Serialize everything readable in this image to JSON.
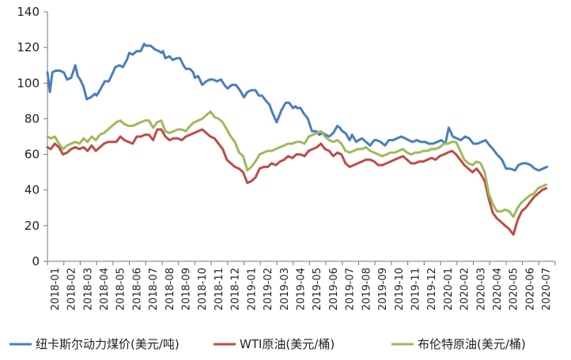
{
  "chart_data": {
    "type": "line",
    "title": "",
    "xlabel": "",
    "ylabel": "",
    "ylim": [
      0,
      140
    ],
    "yticks": [
      0,
      20,
      40,
      60,
      80,
      100,
      120,
      140
    ],
    "grid": false,
    "legend_position": "bottom",
    "x_ticks": [
      "2018-01",
      "2018-02",
      "2018-03",
      "2018-04",
      "2018-05",
      "2018-06",
      "2018-07",
      "2018-08",
      "2018-09",
      "2018-10",
      "2018-11",
      "2018-12",
      "2019-01",
      "2019-02",
      "2019-03",
      "2019-04",
      "2019-05",
      "2019-06",
      "2019-07",
      "2019-08",
      "2019-09",
      "2019-10",
      "2019-11",
      "2019-12",
      "2020-01",
      "2020-02",
      "2020-03",
      "2020-04",
      "2020-05",
      "2020-06",
      "2020-07"
    ],
    "x_range": [
      0,
      31
    ],
    "series": [
      {
        "name": "纽卡斯尔动力煤价(美元/吨)",
        "color": "#4A7EBB",
        "x": [
          0,
          0.15,
          0.3,
          0.5,
          0.75,
          1,
          1.2,
          1.45,
          1.7,
          1.85,
          2,
          2.2,
          2.4,
          2.65,
          2.9,
          3,
          3.2,
          3.5,
          3.75,
          4,
          4.15,
          4.4,
          4.6,
          4.85,
          5,
          5.2,
          5.45,
          5.7,
          5.9,
          6,
          6.3,
          6.55,
          6.8,
          6.95,
          7.05,
          7.2,
          7.45,
          7.65,
          7.9,
          8.1,
          8.3,
          8.45,
          8.7,
          8.9,
          9,
          9.2,
          9.45,
          9.7,
          9.9,
          10.1,
          10.35,
          10.6,
          10.8,
          11,
          11.25,
          11.5,
          11.75,
          12,
          12.2,
          12.45,
          12.7,
          12.9,
          13.1,
          13.35,
          13.55,
          13.75,
          14,
          14.3,
          14.55,
          14.75,
          15,
          15.15,
          15.25,
          15.45,
          15.65,
          15.9,
          16.15,
          16.4,
          16.6,
          16.8,
          17,
          17.2,
          17.45,
          17.7,
          17.85,
          18,
          18.2,
          18.45,
          18.6,
          18.85,
          19,
          19.2,
          19.45,
          19.7,
          19.95,
          20.1,
          20.35,
          20.6,
          20.85,
          21.1,
          21.35,
          21.6,
          21.85,
          22.05,
          22.3,
          22.55,
          22.8,
          23.05,
          23.3,
          23.55,
          23.8,
          24.05,
          24.3,
          24.5,
          24.75,
          25,
          25.25,
          25.5,
          25.75,
          26,
          26.25,
          26.5,
          26.75,
          27,
          27.2,
          27.45,
          27.75,
          28,
          28.25,
          28.55,
          28.75,
          29,
          29.25,
          29.5,
          29.75,
          30,
          30.25,
          30.5
        ],
        "y": [
          106,
          95,
          106,
          107,
          107,
          106,
          102,
          103,
          110,
          104,
          102,
          98,
          91,
          92,
          94,
          93,
          96,
          101,
          101,
          106,
          109,
          110,
          109,
          113,
          117,
          116,
          118,
          118,
          122,
          121,
          121,
          119,
          118,
          117,
          118,
          114,
          115,
          113,
          114,
          114,
          110,
          108,
          108,
          106,
          103,
          104,
          99,
          101,
          102,
          102,
          101,
          102,
          99,
          97,
          99,
          99,
          96,
          92,
          95,
          96,
          96,
          93,
          93,
          90,
          88,
          83,
          78,
          85,
          89,
          89,
          86,
          87,
          86,
          86,
          83,
          80,
          73,
          73,
          71,
          72,
          71,
          70,
          72,
          76,
          75,
          73,
          72,
          68,
          71,
          67,
          68,
          69,
          67,
          65,
          68,
          68,
          67,
          65,
          68,
          68,
          69,
          70,
          69,
          68,
          67,
          68,
          67,
          67,
          66,
          66,
          67,
          68,
          66,
          75,
          70,
          69,
          68,
          70,
          69,
          66,
          66,
          67,
          68,
          65,
          63,
          60,
          57,
          52,
          52,
          51,
          54,
          55,
          55,
          54,
          52,
          51,
          52,
          53
        ]
      },
      {
        "name": "WTI原油(美元/桶)",
        "color": "#BE4B48",
        "x": [
          0,
          0.2,
          0.45,
          0.7,
          0.95,
          1.2,
          1.45,
          1.7,
          1.95,
          2.2,
          2.45,
          2.7,
          2.95,
          3.2,
          3.45,
          3.7,
          3.95,
          4.2,
          4.45,
          4.7,
          4.95,
          5.2,
          5.45,
          5.7,
          5.95,
          6.2,
          6.45,
          6.7,
          6.95,
          7.2,
          7.45,
          7.7,
          7.95,
          8.2,
          8.45,
          8.7,
          8.95,
          9.2,
          9.45,
          9.7,
          9.95,
          10.2,
          10.45,
          10.7,
          10.95,
          11.2,
          11.45,
          11.7,
          11.95,
          12.2,
          12.45,
          12.7,
          12.95,
          13.2,
          13.45,
          13.7,
          13.95,
          14.2,
          14.45,
          14.7,
          14.95,
          15.2,
          15.45,
          15.7,
          15.95,
          16.2,
          16.45,
          16.7,
          16.95,
          17.2,
          17.45,
          17.7,
          17.95,
          18.2,
          18.45,
          18.7,
          18.95,
          19.2,
          19.45,
          19.7,
          19.95,
          20.2,
          20.45,
          20.7,
          20.95,
          21.2,
          21.45,
          21.7,
          21.95,
          22.2,
          22.45,
          22.7,
          22.95,
          23.2,
          23.45,
          23.7,
          23.95,
          24.2,
          24.45,
          24.7,
          24.95,
          25.2,
          25.45,
          25.7,
          25.95,
          26.2,
          26.45,
          26.7,
          26.95,
          27.2,
          27.45,
          27.7,
          27.95,
          28.2,
          28.45,
          28.7,
          28.95,
          29.2,
          29.45,
          29.7,
          29.95,
          30.2,
          30.45
        ],
        "y": [
          64,
          63,
          66,
          64,
          60,
          61,
          63,
          64,
          63,
          64,
          62,
          65,
          62,
          64,
          66,
          67,
          67,
          67,
          70,
          68,
          67,
          66,
          70,
          70,
          71,
          71,
          68,
          74,
          74,
          70,
          68,
          69,
          69,
          68,
          70,
          71,
          72,
          73,
          74,
          72,
          70,
          69,
          66,
          63,
          57,
          55,
          53,
          52,
          50,
          44,
          45,
          47,
          52,
          53,
          53,
          55,
          54,
          56,
          57,
          59,
          58,
          60,
          60,
          59,
          62,
          63,
          64,
          66,
          63,
          62,
          59,
          61,
          60,
          55,
          53,
          54,
          55,
          56,
          57,
          57,
          56,
          54,
          54,
          55,
          56,
          57,
          58,
          59,
          57,
          55,
          55,
          56,
          56,
          57,
          58,
          57,
          59,
          60,
          61,
          62,
          60,
          57,
          54,
          52,
          50,
          52,
          49,
          45,
          35,
          27,
          24,
          22,
          20,
          18,
          15,
          23,
          28,
          30,
          33,
          36,
          38,
          40,
          41
        ]
      },
      {
        "name": "布伦特原油(美元/桶)",
        "color": "#9BBB59",
        "x": [
          0,
          0.2,
          0.45,
          0.7,
          0.95,
          1.2,
          1.45,
          1.7,
          1.95,
          2.2,
          2.45,
          2.7,
          2.95,
          3.2,
          3.45,
          3.7,
          3.95,
          4.2,
          4.45,
          4.7,
          4.95,
          5.2,
          5.45,
          5.7,
          5.95,
          6.2,
          6.45,
          6.7,
          6.95,
          7.2,
          7.45,
          7.7,
          7.95,
          8.2,
          8.45,
          8.7,
          8.95,
          9.2,
          9.45,
          9.7,
          9.95,
          10.2,
          10.45,
          10.7,
          10.95,
          11.2,
          11.45,
          11.7,
          11.95,
          12.2,
          12.45,
          12.7,
          12.95,
          13.2,
          13.45,
          13.7,
          13.95,
          14.2,
          14.45,
          14.7,
          14.95,
          15.2,
          15.45,
          15.7,
          15.95,
          16.2,
          16.45,
          16.7,
          16.95,
          17.2,
          17.45,
          17.7,
          17.95,
          18.2,
          18.45,
          18.7,
          18.95,
          19.2,
          19.45,
          19.7,
          19.95,
          20.2,
          20.45,
          20.7,
          20.95,
          21.2,
          21.45,
          21.7,
          21.95,
          22.2,
          22.45,
          22.7,
          22.95,
          23.2,
          23.45,
          23.7,
          23.95,
          24.2,
          24.45,
          24.7,
          24.95,
          25.2,
          25.45,
          25.7,
          25.95,
          26.2,
          26.45,
          26.7,
          26.95,
          27.2,
          27.45,
          27.7,
          27.95,
          28.2,
          28.45,
          28.7,
          28.95,
          29.2,
          29.45,
          29.7,
          29.95,
          30.2,
          30.45
        ],
        "y": [
          70,
          69,
          70,
          66,
          63,
          65,
          66,
          67,
          66,
          69,
          67,
          70,
          68,
          71,
          72,
          74,
          76,
          78,
          79,
          77,
          76,
          76,
          77,
          78,
          79,
          79,
          75,
          78,
          79,
          73,
          72,
          73,
          74,
          74,
          73,
          76,
          78,
          79,
          80,
          82,
          84,
          81,
          80,
          78,
          74,
          70,
          67,
          61,
          59,
          51,
          53,
          56,
          60,
          61,
          62,
          62,
          63,
          64,
          65,
          66,
          66,
          67,
          67,
          66,
          70,
          71,
          72,
          73,
          70,
          68,
          67,
          68,
          66,
          62,
          61,
          62,
          63,
          63,
          64,
          62,
          61,
          60,
          59,
          60,
          61,
          61,
          62,
          63,
          61,
          60,
          61,
          61,
          62,
          62,
          63,
          63,
          64,
          66,
          66,
          67,
          67,
          62,
          57,
          55,
          54,
          56,
          55,
          50,
          38,
          32,
          28,
          28,
          29,
          28,
          25,
          30,
          33,
          35,
          37,
          38,
          41,
          42,
          43
        ]
      }
    ]
  }
}
